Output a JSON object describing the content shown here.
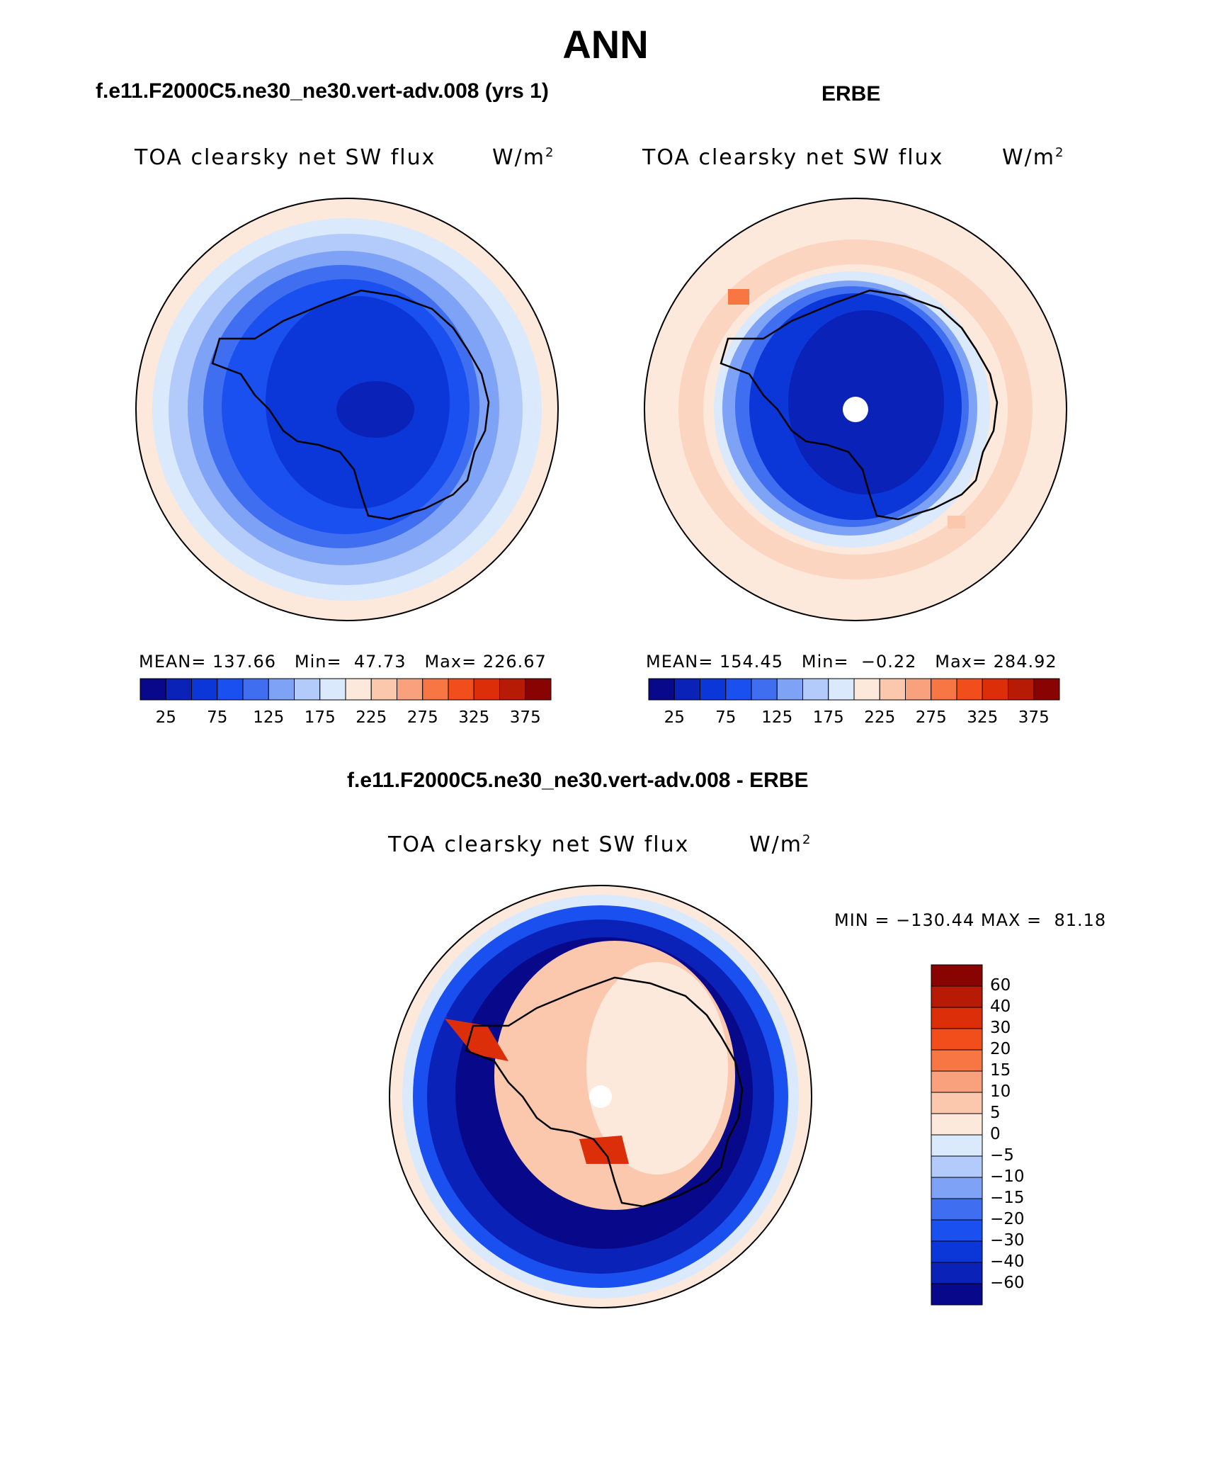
{
  "title": "ANN",
  "panels": {
    "model": {
      "case_label": "f.e11.F2000C5.ne30_ne30.vert-adv.008 (yrs 1)",
      "var_label": "TOA clearsky net SW flux",
      "units": "W/m",
      "units_sup": "2",
      "stats": {
        "mean_label": "MEAN=",
        "mean": "137.66",
        "min_label": "Min=",
        "min": "47.73",
        "max_label": "Max=",
        "max": "226.67"
      }
    },
    "obs": {
      "case_label": "ERBE",
      "var_label": "TOA clearsky net SW flux",
      "units": "W/m",
      "units_sup": "2",
      "stats": {
        "mean_label": "MEAN=",
        "mean": "154.45",
        "min_label": "Min=",
        "min": "−0.22",
        "max_label": "Max=",
        "max": "284.92"
      }
    },
    "diff": {
      "case_label": "f.e11.F2000C5.ne30_ne30.vert-adv.008 - ERBE",
      "var_label": "TOA clearsky net SW flux",
      "units": "W/m",
      "units_sup": "2",
      "minmax": {
        "min_label": "MIN =",
        "min": "−130.44",
        "max_label": "MAX =",
        "max": "81.18"
      }
    }
  },
  "colorbar_abs": {
    "colors": [
      "#08088a",
      "#0a22b8",
      "#0c37d8",
      "#1a4ff0",
      "#3f6ff0",
      "#7ea2f5",
      "#b3cbfa",
      "#dbe9fc",
      "#fde9dc",
      "#fbc8ae",
      "#f9a07c",
      "#f87643",
      "#f24e1b",
      "#dc2e09",
      "#b71a05",
      "#8a0303"
    ],
    "ticks": [
      "25",
      "75",
      "125",
      "175",
      "225",
      "275",
      "325",
      "375"
    ]
  },
  "colorbar_diff": {
    "colors": [
      "#08088a",
      "#0a22b8",
      "#0c37d8",
      "#1a4ff0",
      "#3f6ff0",
      "#7ea2f5",
      "#b3cbfa",
      "#dbe9fc",
      "#fde9dc",
      "#fbc8ae",
      "#f9a07c",
      "#f87643",
      "#f24e1b",
      "#dc2e09",
      "#b71a05",
      "#8a0303"
    ],
    "ticks": [
      "60",
      "40",
      "30",
      "20",
      "15",
      "10",
      "5",
      "0",
      "−5",
      "−10",
      "−15",
      "−20",
      "−30",
      "−40",
      "−60"
    ]
  }
}
